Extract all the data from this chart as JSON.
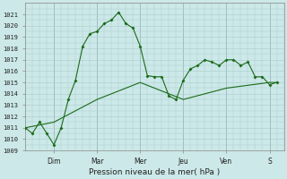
{
  "xlabel": "Pression niveau de la mer( hPa )",
  "bg_color": "#cce8e8",
  "plot_bg_color": "#cce8e8",
  "grid_color": "#aacccc",
  "line_color": "#1a6b1a",
  "ylim": [
    1009,
    1022
  ],
  "yticks": [
    1009,
    1010,
    1011,
    1012,
    1013,
    1014,
    1015,
    1016,
    1017,
    1018,
    1019,
    1020,
    1021
  ],
  "day_labels": [
    "Dim",
    "Mar",
    "Mer",
    "Jeu",
    "Ven",
    "S"
  ],
  "day_positions": [
    16,
    40,
    64,
    88,
    112,
    136
  ],
  "series1_x": [
    0,
    4,
    8,
    12,
    16,
    20,
    24,
    28,
    32,
    36,
    40,
    44,
    48,
    52,
    56,
    60,
    64,
    68,
    72,
    76,
    80,
    84,
    88,
    92,
    96,
    100,
    104,
    108,
    112,
    116,
    120,
    124,
    128,
    132,
    136,
    140
  ],
  "series1_y": [
    1011,
    1010.5,
    1011.5,
    1010.5,
    1009.5,
    1011.0,
    1013.5,
    1015.2,
    1018.2,
    1019.3,
    1019.5,
    1020.2,
    1020.5,
    1021.2,
    1020.2,
    1019.8,
    1018.2,
    1015.6,
    1015.5,
    1015.5,
    1013.8,
    1013.5,
    1015.2,
    1016.2,
    1016.5,
    1017.0,
    1016.8,
    1016.5,
    1017.0,
    1017.0,
    1016.5,
    1016.8,
    1015.5,
    1015.5,
    1014.8,
    1015.0
  ],
  "series2_x": [
    0,
    16,
    40,
    64,
    88,
    112,
    136,
    140
  ],
  "series2_y": [
    1011.0,
    1011.5,
    1013.5,
    1015.0,
    1013.5,
    1014.5,
    1015.0,
    1015.0
  ]
}
